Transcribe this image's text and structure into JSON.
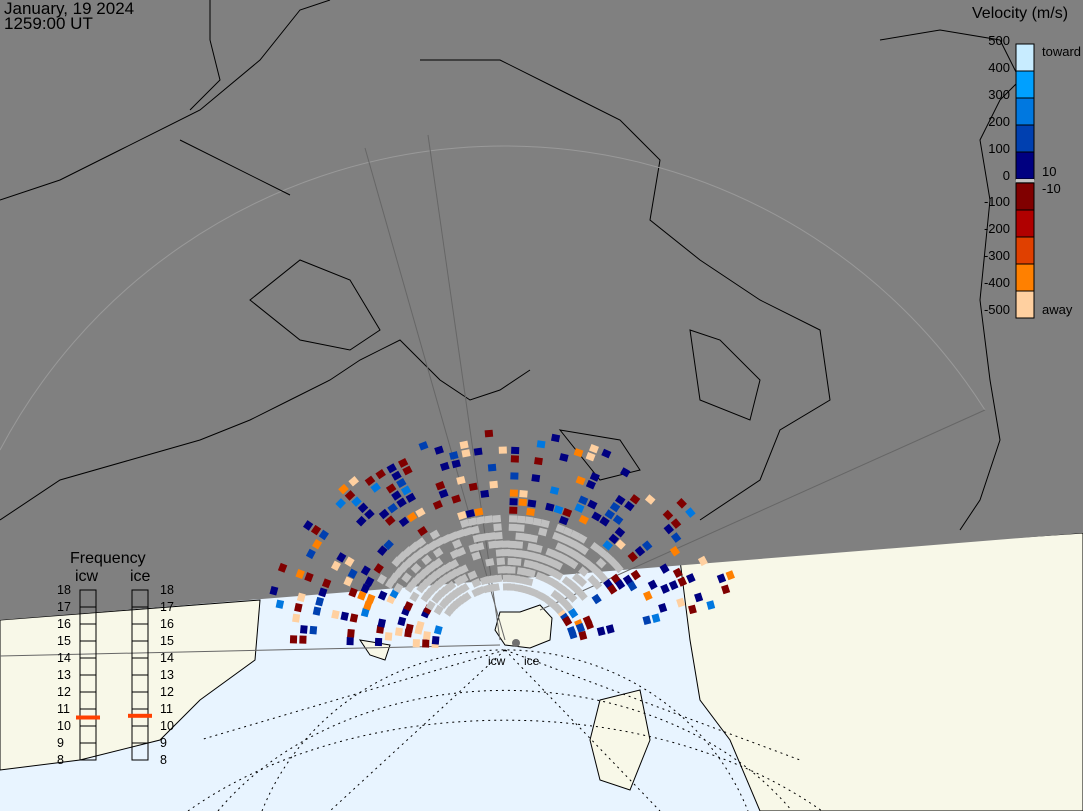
{
  "header": {
    "date": "January, 19 2024",
    "time": "1259:00 UT"
  },
  "velocity_scale": {
    "title": "Velocity (m/s)",
    "ticks": [
      "500",
      "400",
      "300",
      "200",
      "100",
      "0",
      "-100",
      "-200",
      "-300",
      "-400",
      "-500"
    ],
    "toward_label": "toward",
    "away_label": "away",
    "pos_small": "10",
    "neg_small": "-10",
    "colors": [
      "#c8ecff",
      "#00a0ff",
      "#0078e0",
      "#0040b0",
      "#000080",
      "#c0c0c0",
      "#800000",
      "#b00000",
      "#e04000",
      "#ff8000",
      "#ffd0a0"
    ]
  },
  "frequency": {
    "title": "Frequency",
    "radars": [
      {
        "name": "icw",
        "value_mhz": 10.5
      },
      {
        "name": "ice",
        "value_mhz": 10.6
      }
    ],
    "ticks": [
      "18",
      "17",
      "16",
      "15",
      "14",
      "13",
      "12",
      "11",
      "10",
      "9",
      "8"
    ],
    "marker_color": "#ff4000"
  },
  "sites": [
    {
      "name": "icw"
    },
    {
      "name": "ice"
    }
  ],
  "colors": {
    "night": "#808080",
    "land": "#f8f8e8",
    "ocean": "#e8f4ff",
    "ground_scatter": "#c0c0c0"
  }
}
